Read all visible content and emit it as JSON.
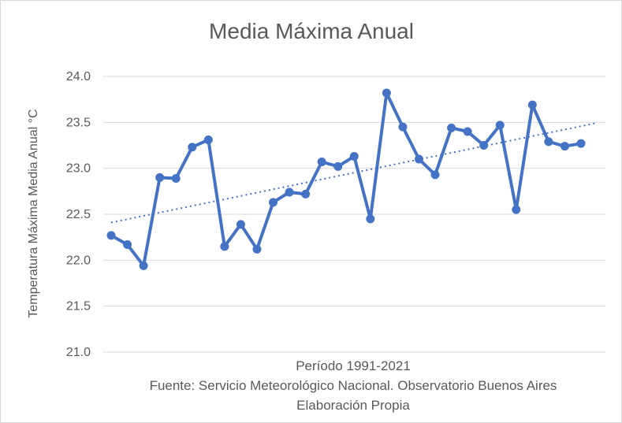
{
  "chart_data": {
    "type": "line",
    "title": "Media Máxima Anual",
    "ylabel": "Temperatura Máxima Media Anual °C",
    "xlabel": "Período 1991-2021",
    "footer_lines": [
      "Período 1991-2021",
      "Fuente: Servicio Meteorológico Nacional. Observatorio Buenos Aires",
      "Elaboración Propia"
    ],
    "ylim": [
      21.0,
      24.0
    ],
    "yticks": [
      "21.0",
      "21.5",
      "22.0",
      "22.5",
      "23.0",
      "23.5",
      "24.0"
    ],
    "grid": true,
    "series": [
      {
        "values": [
          22.27,
          22.17,
          21.94,
          22.9,
          22.89,
          23.23,
          23.31,
          22.15,
          22.39,
          22.12,
          22.63,
          22.74,
          22.72,
          23.07,
          23.02,
          23.13,
          22.45,
          23.82,
          23.45,
          23.1,
          22.93,
          23.44,
          23.4,
          23.25,
          23.47,
          22.55,
          23.69,
          23.29,
          23.24,
          23.27
        ]
      }
    ],
    "trendline": {
      "type": "linear",
      "start": 22.41,
      "end": 23.49
    },
    "colors": {
      "series": "#4472C4",
      "grid": "#d9d9d9",
      "text": "#595959"
    }
  }
}
